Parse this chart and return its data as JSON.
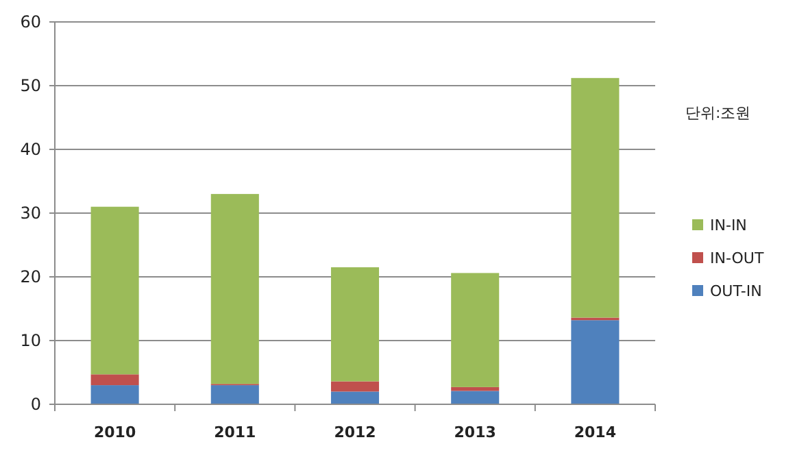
{
  "chart_data": {
    "type": "bar",
    "stacked": true,
    "categories": [
      "2010",
      "2011",
      "2012",
      "2013",
      "2014"
    ],
    "series": [
      {
        "name": "OUT-IN",
        "color": "#4f81bd",
        "values": [
          3.0,
          3.0,
          2.0,
          2.1,
          13.2
        ]
      },
      {
        "name": "IN-OUT",
        "color": "#c0504d",
        "values": [
          1.7,
          0.2,
          1.6,
          0.6,
          0.4
        ]
      },
      {
        "name": "IN-IN",
        "color": "#9bbb59",
        "values": [
          26.3,
          29.8,
          17.9,
          17.9,
          37.6
        ]
      }
    ],
    "ylim": [
      0,
      60
    ],
    "yticks": [
      0,
      10,
      20,
      30,
      40,
      50,
      60
    ],
    "grid": "y",
    "legend": "right",
    "annotations": [
      "단위:조원"
    ]
  }
}
